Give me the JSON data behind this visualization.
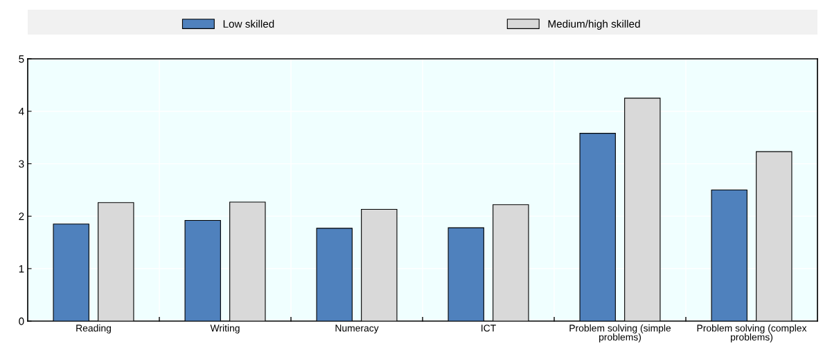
{
  "chart_data": {
    "type": "bar",
    "categories": [
      "Reading",
      "Writing",
      "Numeracy",
      "ICT",
      "Problem solving (simple problems)",
      "Problem solving (complex problems)"
    ],
    "series": [
      {
        "name": "Low skilled",
        "color": "#4f81bd",
        "values": [
          1.85,
          1.92,
          1.77,
          1.78,
          3.58,
          2.5
        ]
      },
      {
        "name": "Medium/high skilled",
        "color": "#d9d9d9",
        "values": [
          2.26,
          2.27,
          2.13,
          2.22,
          4.25,
          3.23
        ]
      }
    ],
    "ylim": [
      0,
      5
    ],
    "yticks": [
      0,
      1,
      2,
      3,
      4,
      5
    ],
    "grid": true,
    "legend": "top"
  }
}
